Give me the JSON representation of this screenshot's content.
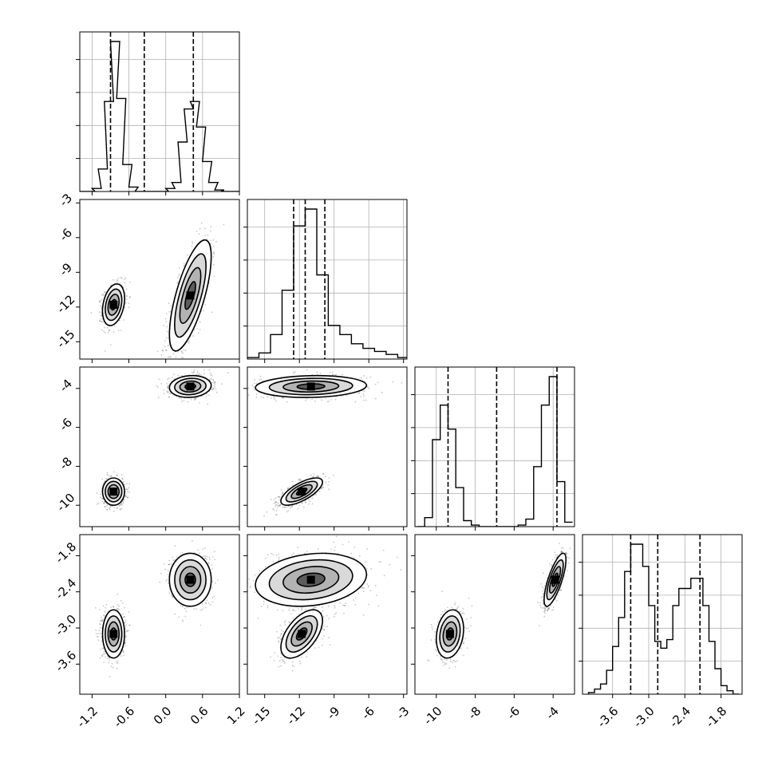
{
  "chart_data": {
    "type": "corner",
    "title": "",
    "parameters": [
      {
        "label": "",
        "range": [
          -1.4,
          1.2
        ],
        "ticks": [
          "-1.2",
          "-0.6",
          "0.0",
          "0.6",
          "1.2"
        ],
        "tick_values": [
          -1.2,
          -0.6,
          0.0,
          0.6,
          1.2
        ],
        "quantiles": [
          -0.9,
          -0.35,
          0.45
        ]
      },
      {
        "label": "",
        "range": [
          -16.5,
          -2.7
        ],
        "ticks": [
          "-15",
          "-12",
          "-9",
          "-6",
          "-3"
        ],
        "tick_values": [
          -15,
          -12,
          -9,
          -6,
          -3
        ],
        "quantiles": [
          -12.5,
          -11.5,
          -9.8
        ]
      },
      {
        "label": "",
        "range": [
          -11.1,
          -2.9
        ],
        "ticks": [
          "-10",
          "-8",
          "-6",
          "-4"
        ],
        "tick_values": [
          -10,
          -8,
          -6,
          -4
        ],
        "quantiles": [
          -9.4,
          -6.9,
          -3.8
        ]
      },
      {
        "label": "",
        "range": [
          -4.1,
          -1.45
        ],
        "ticks": [
          "-3.6",
          "-3.0",
          "-2.4",
          "-1.8"
        ],
        "tick_values": [
          -3.6,
          -3.0,
          -2.4,
          -1.8
        ],
        "quantiles": [
          -3.3,
          -2.85,
          -2.15
        ]
      }
    ],
    "histograms": [
      {
        "param": 0,
        "bins": [
          -1.35,
          -1.3,
          -1.25,
          -1.2,
          -1.15,
          -1.1,
          -1.05,
          -1.0,
          -0.95,
          -0.9,
          -0.85,
          -0.8,
          -0.75,
          -0.7,
          -0.65,
          -0.6,
          -0.55,
          -0.5,
          -0.45,
          -0.4,
          -0.35,
          -0.3,
          -0.25,
          -0.2,
          -0.15,
          -0.1,
          -0.05,
          0.0,
          0.05,
          0.1,
          0.15,
          0.2,
          0.25,
          0.3,
          0.35,
          0.4,
          0.45,
          0.5,
          0.55,
          0.6,
          0.65,
          0.7,
          0.75,
          0.8,
          0.85,
          0.9,
          0.95,
          1.0,
          1.05,
          1.1,
          1.15,
          1.2
        ],
        "bin_width": 0.1,
        "counts_rel": [
          0.0,
          0.0,
          0.0,
          0.0,
          0.02,
          0.02,
          0.15,
          0.15,
          0.6,
          0.6,
          1.0,
          1.0,
          0.62,
          0.62,
          0.18,
          0.18,
          0.03,
          0.03,
          0.0,
          0.0,
          0.0,
          0.0,
          0.0,
          0.0,
          0.0,
          0.0,
          0.0,
          0.0,
          0.02,
          0.02,
          0.06,
          0.06,
          0.33,
          0.33,
          0.55,
          0.55,
          0.6,
          0.6,
          0.43,
          0.43,
          0.2,
          0.2,
          0.06,
          0.06,
          0.01,
          0.01,
          0.0,
          0.0,
          0.0,
          0.0,
          0.0,
          0.0
        ]
      },
      {
        "param": 1,
        "bins": [
          -16.0,
          -15.0,
          -14.0,
          -13.0,
          -12.0,
          -11.0,
          -10.0,
          -9.0,
          -8.0,
          -7.0,
          -6.0,
          -5.0,
          -4.0,
          -3.0
        ],
        "counts_rel": [
          0.01,
          0.04,
          0.16,
          0.45,
          0.87,
          0.98,
          0.55,
          0.22,
          0.16,
          0.1,
          0.07,
          0.05,
          0.03,
          0.01
        ]
      },
      {
        "param": 2,
        "bins": [
          -10.8,
          -10.4,
          -10.0,
          -9.6,
          -9.2,
          -8.8,
          -8.4,
          -8.0,
          -7.6,
          -7.2,
          -6.8,
          -6.4,
          -6.0,
          -5.6,
          -5.2,
          -4.8,
          -4.4,
          -4.0,
          -3.6,
          -3.2
        ],
        "counts_rel": [
          0.0,
          0.06,
          0.58,
          0.81,
          0.65,
          0.26,
          0.04,
          0.01,
          0.0,
          0.0,
          0.0,
          0.0,
          0.0,
          0.01,
          0.05,
          0.4,
          0.81,
          1.0,
          0.3,
          0.03
        ]
      },
      {
        "param": 3,
        "bins": [
          -3.95,
          -3.85,
          -3.75,
          -3.65,
          -3.55,
          -3.45,
          -3.35,
          -3.25,
          -3.15,
          -3.05,
          -2.95,
          -2.85,
          -2.75,
          -2.65,
          -2.55,
          -2.45,
          -2.35,
          -2.25,
          -2.15,
          -2.05,
          -1.95,
          -1.85,
          -1.75,
          -1.65,
          -1.55
        ],
        "counts_rel": [
          0.01,
          0.03,
          0.06,
          0.14,
          0.28,
          0.45,
          0.72,
          0.88,
          0.88,
          0.75,
          0.52,
          0.31,
          0.27,
          0.32,
          0.52,
          0.62,
          0.62,
          0.68,
          0.68,
          0.52,
          0.31,
          0.15,
          0.05,
          0.02,
          0.0
        ]
      }
    ],
    "modes": [
      {
        "weight": 0.5,
        "mean": [
          -0.85,
          -11.8,
          -9.3,
          -3.1
        ],
        "sd": [
          0.09,
          0.9,
          0.35,
          0.2
        ],
        "corr": {
          "0-1": 0.3,
          "0-2": 0.0,
          "0-3": 0.0,
          "1-2": 0.7,
          "1-3": 0.55,
          "2-3": 0.2
        }
      },
      {
        "weight": 0.5,
        "mean": [
          0.4,
          -11.0,
          -3.9,
          -2.2
        ],
        "sd": [
          0.17,
          2.4,
          0.28,
          0.22
        ],
        "corr": {
          "0-1": 0.7,
          "0-2": 0.1,
          "0-3": 0.0,
          "1-2": 0.1,
          "1-3": 0.2,
          "2-3": 0.75
        }
      }
    ],
    "grid": true,
    "legend": "none"
  }
}
